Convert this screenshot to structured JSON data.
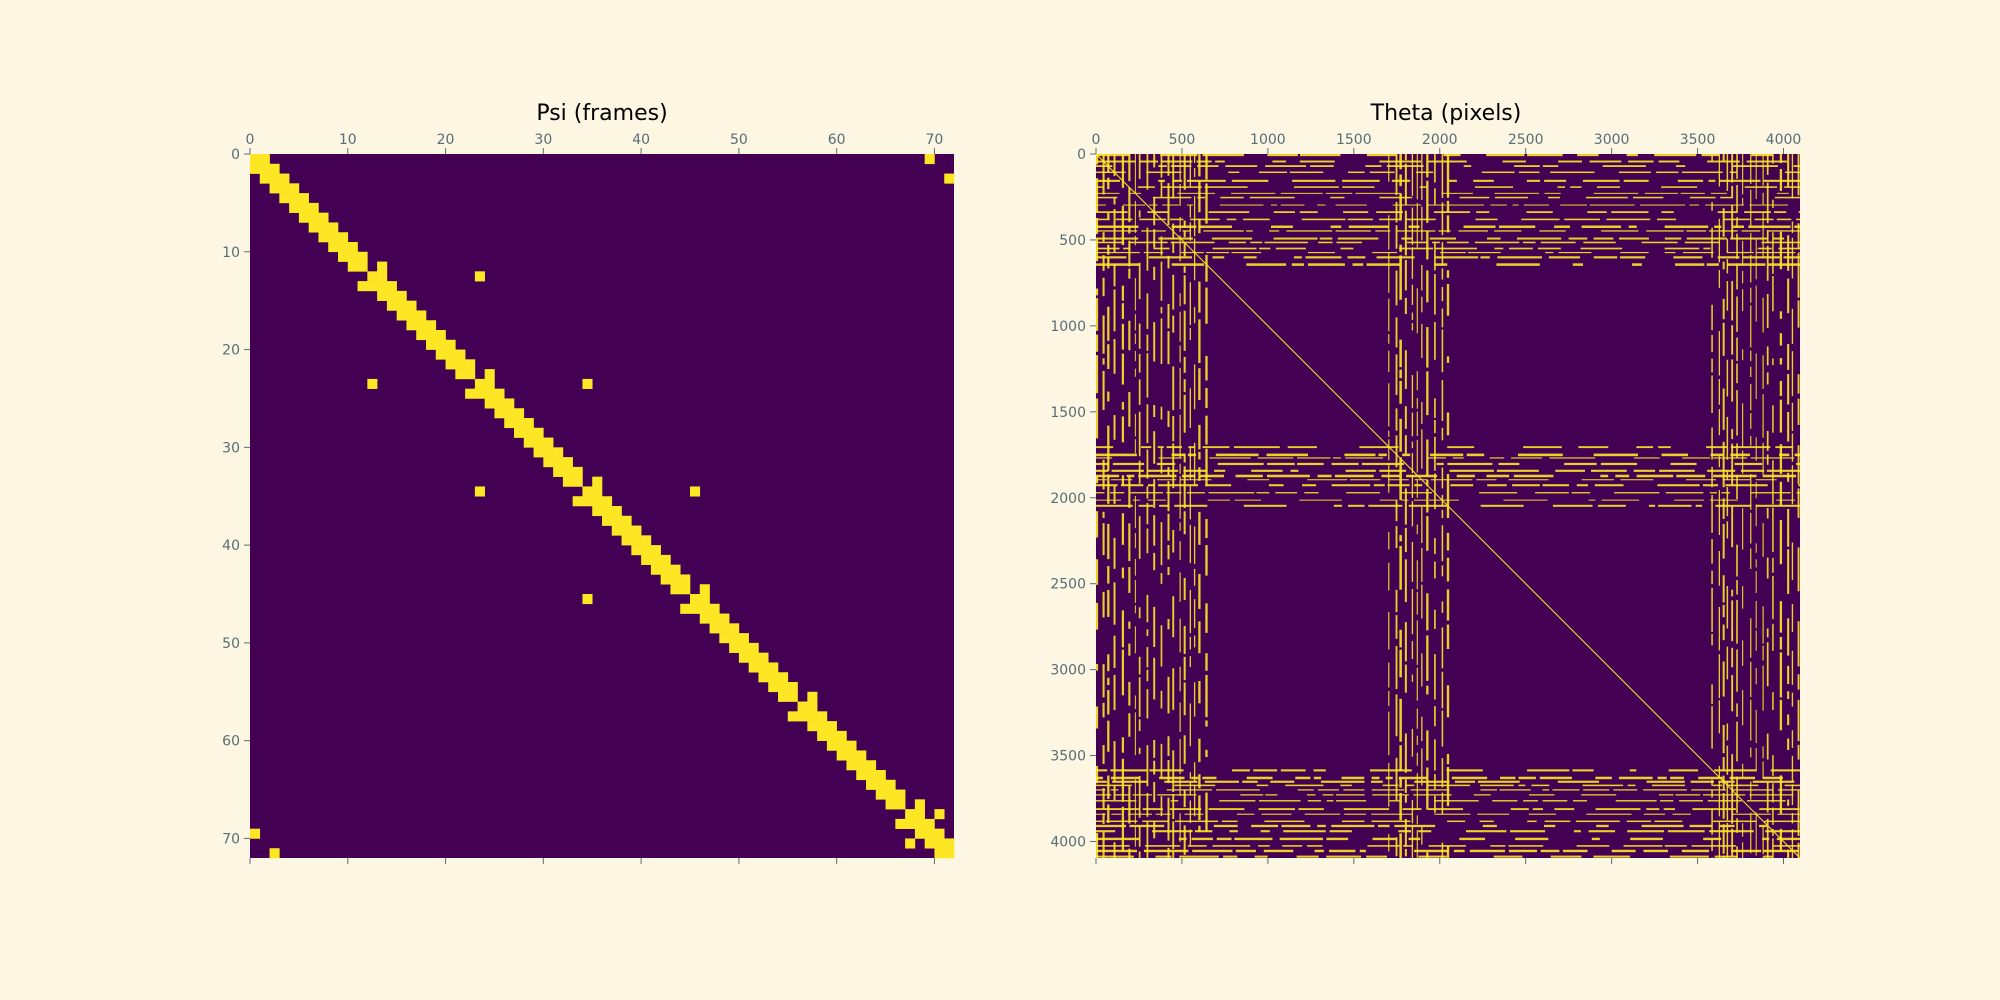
{
  "colors": {
    "background": "#fdf6e3",
    "matrix_low": "#440154",
    "matrix_high": "#fde725",
    "tick_text": "#586e75",
    "title_text": "#000000"
  },
  "chart_data": [
    {
      "type": "heatmap",
      "title": "Psi (frames)",
      "size": 72,
      "xlim": [
        0,
        72
      ],
      "ylim": [
        72,
        0
      ],
      "xticks": [
        0,
        10,
        20,
        30,
        40,
        50,
        60,
        70
      ],
      "yticks": [
        0,
        10,
        20,
        30,
        40,
        50,
        60,
        70
      ],
      "x_tick_position": "top",
      "colormap": "viridis (binary)",
      "values": [
        0,
        1
      ],
      "description": "banded near-diagonal binary adjacency matrix",
      "diagonal_band": 1,
      "extra_cells": [
        [
          0,
          69
        ],
        [
          69,
          0
        ],
        [
          2,
          71
        ],
        [
          71,
          2
        ],
        [
          12,
          23
        ],
        [
          23,
          12
        ],
        [
          11,
          13
        ],
        [
          13,
          11
        ],
        [
          22,
          24
        ],
        [
          24,
          22
        ],
        [
          23,
          34
        ],
        [
          34,
          23
        ],
        [
          33,
          35
        ],
        [
          35,
          33
        ],
        [
          34,
          45
        ],
        [
          45,
          34
        ],
        [
          44,
          46
        ],
        [
          46,
          44
        ],
        [
          55,
          57
        ],
        [
          57,
          55
        ],
        [
          66,
          68
        ],
        [
          68,
          66
        ],
        [
          67,
          70
        ],
        [
          70,
          67
        ],
        [
          0,
          1
        ],
        [
          1,
          0
        ],
        [
          70,
          71
        ],
        [
          71,
          70
        ]
      ]
    },
    {
      "type": "heatmap",
      "title": "Theta (pixels)",
      "size": 4096,
      "xlim": [
        0,
        4096
      ],
      "ylim": [
        4096,
        0
      ],
      "xticks": [
        0,
        500,
        1000,
        1500,
        2000,
        2500,
        3000,
        3500,
        4000
      ],
      "yticks": [
        0,
        500,
        1000,
        1500,
        2000,
        2500,
        3000,
        3500,
        4000
      ],
      "x_tick_position": "top",
      "colormap": "viridis (binary)",
      "values": [
        0,
        1
      ],
      "description": "sparse binary matrix with dense row/column bands and a thin diagonal",
      "dense_bands": [
        [
          0,
          640
        ],
        [
          1700,
          2050
        ],
        [
          3580,
          4096
        ]
      ]
    }
  ]
}
